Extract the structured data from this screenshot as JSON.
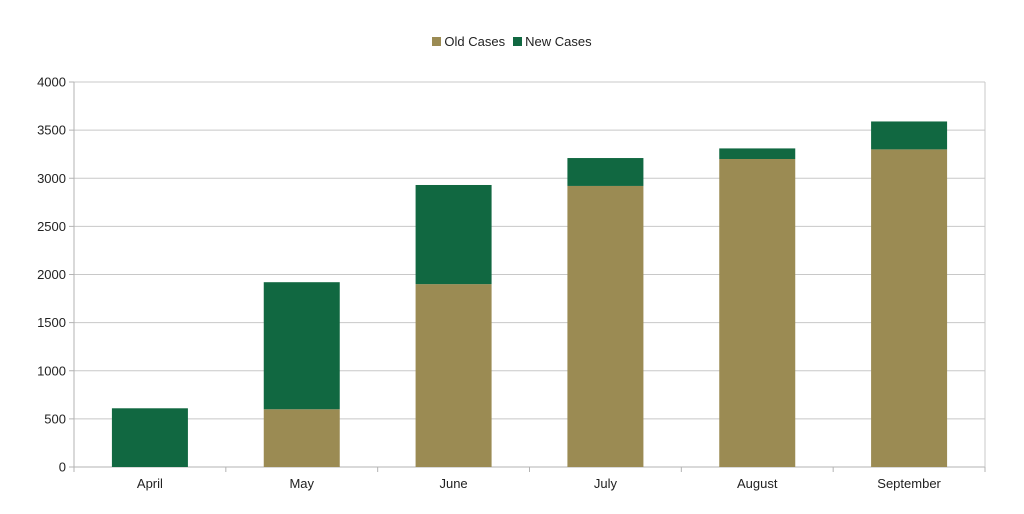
{
  "colors": {
    "old_cases": "#9b8b53",
    "new_cases": "#116841",
    "gridline": "#c8c8c8",
    "axis": "#b3b3b3"
  },
  "chart_data": {
    "type": "bar",
    "stacked": true,
    "categories": [
      "April",
      "May",
      "June",
      "July",
      "August",
      "September"
    ],
    "series": [
      {
        "name": "Old Cases",
        "values": [
          0,
          600,
          1900,
          2920,
          3200,
          3300
        ]
      },
      {
        "name": "New Cases",
        "values": [
          610,
          1320,
          1030,
          290,
          110,
          290
        ]
      }
    ],
    "ylim": [
      0,
      4000
    ],
    "yticks": [
      "0",
      "500",
      "1000",
      "1500",
      "2000",
      "2500",
      "3000",
      "3500",
      "4000"
    ],
    "grid": true,
    "legend_position": "top-center",
    "title": "",
    "xlabel": "",
    "ylabel": ""
  }
}
